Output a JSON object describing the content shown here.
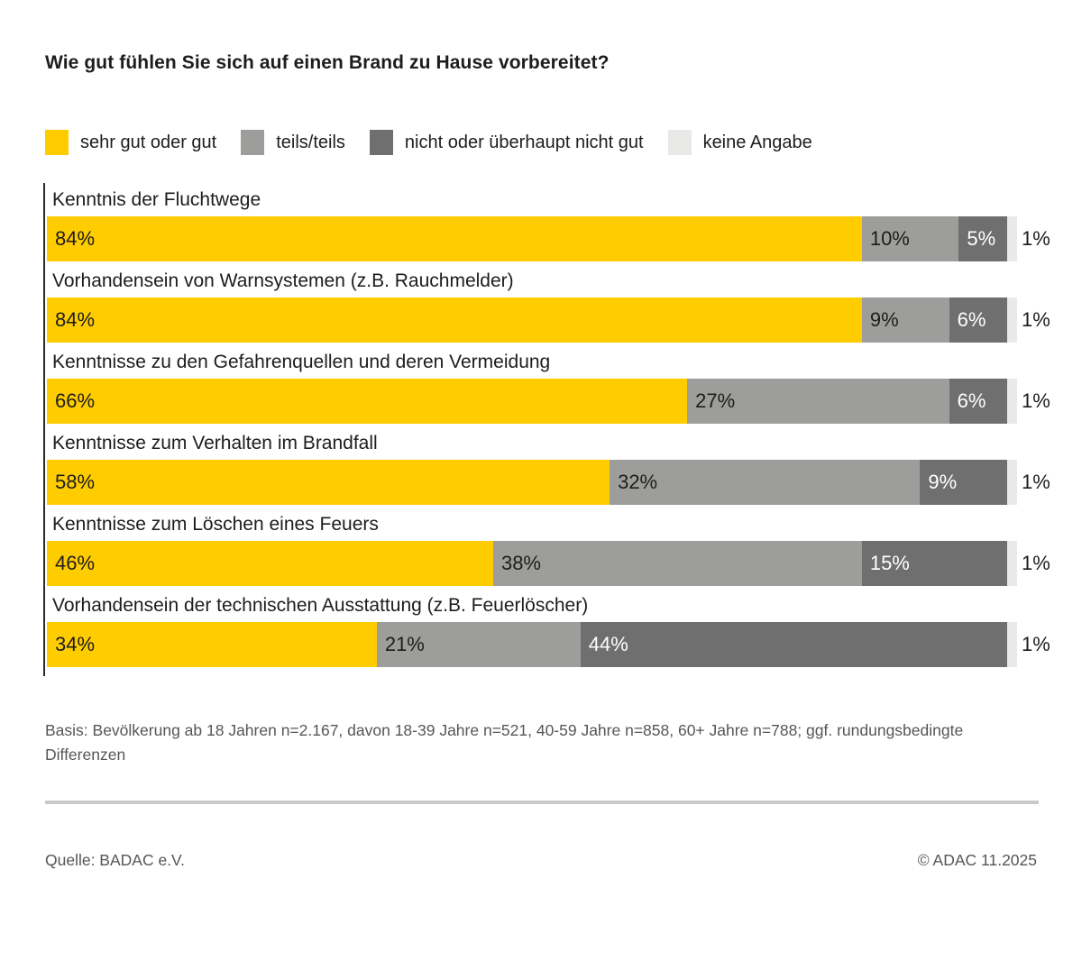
{
  "title": "Wie gut fühlen Sie sich auf einen Brand zu Hause vorbereitet?",
  "colors": {
    "yellow": "#FFCC00",
    "mid_gray": "#9D9D9C",
    "dark_gray": "#706F6F",
    "light_gray": "#E9E9E8",
    "text_dark": "#1D1D1B",
    "text_on_dark": "#FFFFFF",
    "text_muted": "#565655",
    "divider": "#C9C9C9"
  },
  "legend": [
    {
      "key": "sehr-gut-oder-gut",
      "label": "sehr gut oder gut",
      "color_key": "yellow"
    },
    {
      "key": "teils-teils",
      "label": "teils/teils",
      "color_key": "mid_gray"
    },
    {
      "key": "nicht-oder-ueberhaupt-nicht-gut",
      "label": "nicht oder überhaupt nicht gut",
      "color_key": "dark_gray"
    },
    {
      "key": "keine-angabe",
      "label": "keine Angabe",
      "color_key": "light_gray"
    }
  ],
  "chart_data": {
    "type": "bar",
    "orientation": "horizontal",
    "stacked": true,
    "unit": "%",
    "xlim": [
      0,
      100
    ],
    "series_names": [
      "sehr gut oder gut",
      "teils/teils",
      "nicht oder überhaupt nicht gut",
      "keine Angabe"
    ],
    "categories": [
      "Kenntnis der Fluchtwege",
      "Vorhandensein von Warnsystemen (z.B. Rauchmelder)",
      "Kenntnisse zu den Gefahrenquellen und deren Vermeidung",
      "Kenntnisse zum Verhalten im Brandfall",
      "Kenntnisse zum Löschen eines Feuers",
      "Vorhandensein der technischen Ausstattung (z.B. Feuerlöscher)"
    ],
    "rows": [
      {
        "label": "Kenntnis der Fluchtwege",
        "values": [
          84,
          10,
          5,
          1
        ],
        "labels": [
          "84%",
          "10%",
          "5%",
          "1%"
        ]
      },
      {
        "label": "Vorhandensein von Warnsystemen (z.B. Rauchmelder)",
        "values": [
          84,
          9,
          6,
          1
        ],
        "labels": [
          "84%",
          "9%",
          "6%",
          "1%"
        ]
      },
      {
        "label": "Kenntnisse zu den Gefahrenquellen und deren Vermeidung",
        "values": [
          66,
          27,
          6,
          1
        ],
        "labels": [
          "66%",
          "27%",
          "6%",
          "1%"
        ]
      },
      {
        "label": "Kenntnisse zum Verhalten im Brandfall",
        "values": [
          58,
          32,
          9,
          1
        ],
        "labels": [
          "58%",
          "32%",
          "9%",
          "1%"
        ]
      },
      {
        "label": "Kenntnisse zum Löschen eines Feuers",
        "values": [
          46,
          38,
          15,
          1
        ],
        "labels": [
          "46%",
          "38%",
          "15%",
          "1%"
        ]
      },
      {
        "label": "Vorhandensein der technischen Ausstattung (z.B. Feuerlöscher)",
        "values": [
          34,
          21,
          44,
          1
        ],
        "labels": [
          "34%",
          "21%",
          "44%",
          "1%"
        ]
      }
    ]
  },
  "basis": "Basis: Bevölkerung ab 18 Jahren n=2.167, davon 18-39 Jahre n=521, 40-59 Jahre n=858, 60+ Jahre n=788; ggf. rundungsbedingte Differenzen",
  "footer": {
    "source": "Quelle: BADAC e.V.",
    "copyright": "© ADAC 11.2025"
  }
}
